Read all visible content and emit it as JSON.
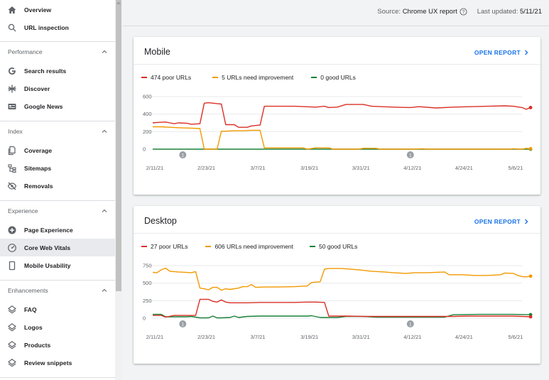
{
  "sidebar": {
    "top_items": [
      {
        "label": "Overview",
        "icon": "home-icon"
      },
      {
        "label": "URL inspection",
        "icon": "search-icon"
      }
    ],
    "sections": [
      {
        "label": "Performance",
        "items": [
          {
            "label": "Search results",
            "icon": "google-g-icon"
          },
          {
            "label": "Discover",
            "icon": "asterisk-icon"
          },
          {
            "label": "Google News",
            "icon": "news-icon"
          }
        ]
      },
      {
        "label": "Index",
        "items": [
          {
            "label": "Coverage",
            "icon": "coverage-icon"
          },
          {
            "label": "Sitemaps",
            "icon": "sitemap-icon"
          },
          {
            "label": "Removals",
            "icon": "removals-icon"
          }
        ]
      },
      {
        "label": "Experience",
        "items": [
          {
            "label": "Page Experience",
            "icon": "page-experience-icon"
          },
          {
            "label": "Core Web Vitals",
            "icon": "gauge-icon",
            "active": true
          },
          {
            "label": "Mobile Usability",
            "icon": "phone-icon"
          }
        ]
      },
      {
        "label": "Enhancements",
        "items": [
          {
            "label": "FAQ",
            "icon": "diamond-layers-icon"
          },
          {
            "label": "Logos",
            "icon": "diamond-layers-icon"
          },
          {
            "label": "Products",
            "icon": "diamond-layers-icon"
          },
          {
            "label": "Review snippets",
            "icon": "diamond-layers-icon"
          }
        ]
      }
    ]
  },
  "header": {
    "source_prefix": "Source:",
    "source_value": "Chrome UX report",
    "updated_prefix": "Last updated:",
    "updated_value": "5/11/21"
  },
  "colors": {
    "poor": "#d93025",
    "needs_improvement": "#f29900",
    "good": "#188038",
    "link": "#1a73e8"
  },
  "cards": [
    {
      "title": "Mobile",
      "open_report": "OPEN REPORT",
      "legend": [
        {
          "label": "474 poor URLs",
          "series": "poor"
        },
        {
          "label": "5 URLs need improvement",
          "series": "needs_improvement"
        },
        {
          "label": "0 good URLs",
          "series": "good"
        }
      ]
    },
    {
      "title": "Desktop",
      "open_report": "OPEN REPORT",
      "legend": [
        {
          "label": "27 poor URLs",
          "series": "poor"
        },
        {
          "label": "606 URLs need improvement",
          "series": "needs_improvement"
        },
        {
          "label": "50 good URLs",
          "series": "good"
        }
      ]
    }
  ],
  "chart_data": [
    {
      "type": "line",
      "title": "Mobile",
      "x_start": "2/11/21",
      "x_end": "5/8/21",
      "x_tick_labels": [
        "2/11/21",
        "2/23/21",
        "3/7/21",
        "3/19/21",
        "3/31/21",
        "4/12/21",
        "4/24/21",
        "5/6/21"
      ],
      "y_ticks": [
        0,
        200,
        400,
        600
      ],
      "ylim": [
        0,
        600
      ],
      "annotation_markers": [
        {
          "x": "2/18/21",
          "label": "1"
        },
        {
          "x": "4/12/21",
          "label": "1"
        }
      ],
      "series": [
        {
          "name": "474 poor URLs",
          "color": "poor",
          "points": [
            [
              "2/11/21",
              300
            ],
            [
              "2/12/21",
              305
            ],
            [
              "2/14/21",
              310
            ],
            [
              "2/15/21",
              300
            ],
            [
              "2/16/21",
              290
            ],
            [
              "2/17/21",
              300
            ],
            [
              "2/19/21",
              295
            ],
            [
              "2/20/21",
              285
            ],
            [
              "2/22/21",
              290
            ],
            [
              "2/23/21",
              525
            ],
            [
              "2/24/21",
              530
            ],
            [
              "2/26/21",
              520
            ],
            [
              "2/27/21",
              515
            ],
            [
              "2/28/21",
              280
            ],
            [
              "3/2/21",
              280
            ],
            [
              "3/3/21",
              250
            ],
            [
              "3/5/21",
              250
            ],
            [
              "3/6/21",
              265
            ],
            [
              "3/8/21",
              275
            ],
            [
              "3/9/21",
              490
            ],
            [
              "3/12/21",
              490
            ],
            [
              "3/16/21",
              490
            ],
            [
              "3/21/21",
              480
            ],
            [
              "3/23/21",
              490
            ],
            [
              "3/24/21",
              475
            ],
            [
              "3/26/21",
              480
            ],
            [
              "3/28/21",
              510
            ],
            [
              "4/1/21",
              510
            ],
            [
              "4/3/21",
              490
            ],
            [
              "4/8/21",
              480
            ],
            [
              "4/12/21",
              475
            ],
            [
              "4/14/21",
              485
            ],
            [
              "4/18/21",
              470
            ],
            [
              "4/22/21",
              480
            ],
            [
              "4/26/21",
              485
            ],
            [
              "4/30/21",
              490
            ],
            [
              "5/4/21",
              495
            ],
            [
              "5/6/21",
              490
            ],
            [
              "5/8/21",
              475
            ],
            [
              "5/9/21",
              455
            ],
            [
              "5/10/21",
              475
            ]
          ]
        },
        {
          "name": "5 URLs need improvement",
          "color": "needs_improvement",
          "points": [
            [
              "2/11/21",
              255
            ],
            [
              "2/13/21",
              255
            ],
            [
              "2/15/21",
              250
            ],
            [
              "2/17/21",
              245
            ],
            [
              "2/20/21",
              240
            ],
            [
              "2/22/21",
              235
            ],
            [
              "2/23/21",
              0
            ],
            [
              "2/26/21",
              0
            ],
            [
              "2/27/21",
              205
            ],
            [
              "2/28/21",
              205
            ],
            [
              "3/2/21",
              210
            ],
            [
              "3/4/21",
              210
            ],
            [
              "3/6/21",
              215
            ],
            [
              "3/8/21",
              215
            ],
            [
              "3/9/21",
              15
            ],
            [
              "3/12/21",
              15
            ],
            [
              "3/18/21",
              15
            ],
            [
              "3/19/21",
              0
            ],
            [
              "3/21/21",
              15
            ],
            [
              "3/24/21",
              15
            ],
            [
              "3/25/21",
              0
            ],
            [
              "3/31/21",
              0
            ],
            [
              "4/1/21",
              10
            ],
            [
              "4/4/21",
              10
            ],
            [
              "4/5/21",
              0
            ],
            [
              "4/12/21",
              0
            ],
            [
              "4/15/21",
              5
            ],
            [
              "4/16/21",
              0
            ],
            [
              "5/5/21",
              0
            ],
            [
              "5/6/21",
              5
            ],
            [
              "5/8/21",
              0
            ],
            [
              "5/9/21",
              10
            ],
            [
              "5/10/21",
              5
            ]
          ]
        },
        {
          "name": "0 good URLs",
          "color": "good",
          "points": [
            [
              "2/11/21",
              0
            ],
            [
              "5/10/21",
              0
            ]
          ]
        }
      ]
    },
    {
      "type": "line",
      "title": "Desktop",
      "x_start": "2/11/21",
      "x_end": "5/8/21",
      "x_tick_labels": [
        "2/11/21",
        "2/23/21",
        "3/7/21",
        "3/19/21",
        "3/31/21",
        "4/12/21",
        "4/24/21",
        "5/6/21"
      ],
      "y_ticks": [
        0,
        250,
        500,
        750
      ],
      "ylim": [
        0,
        750
      ],
      "annotation_markers": [
        {
          "x": "2/18/21",
          "label": "1"
        },
        {
          "x": "4/12/21",
          "label": "1"
        }
      ],
      "series": [
        {
          "name": "27 poor URLs",
          "color": "poor",
          "points": [
            [
              "2/11/21",
              40
            ],
            [
              "2/13/21",
              40
            ],
            [
              "2/14/21",
              15
            ],
            [
              "2/16/21",
              40
            ],
            [
              "2/18/21",
              40
            ],
            [
              "2/21/21",
              40
            ],
            [
              "2/22/21",
              270
            ],
            [
              "2/24/21",
              270
            ],
            [
              "2/25/21",
              240
            ],
            [
              "2/26/21",
              230
            ],
            [
              "2/27/21",
              260
            ],
            [
              "2/28/21",
              230
            ],
            [
              "3/1/21",
              220
            ],
            [
              "3/5/21",
              220
            ],
            [
              "3/8/21",
              225
            ],
            [
              "3/12/21",
              225
            ],
            [
              "3/16/21",
              225
            ],
            [
              "3/19/21",
              230
            ],
            [
              "3/21/21",
              230
            ],
            [
              "3/23/21",
              225
            ],
            [
              "3/24/21",
              30
            ],
            [
              "3/28/21",
              30
            ],
            [
              "4/1/21",
              25
            ],
            [
              "4/5/21",
              25
            ],
            [
              "4/8/21",
              25
            ],
            [
              "4/15/21",
              25
            ],
            [
              "4/20/21",
              25
            ],
            [
              "4/22/21",
              25
            ],
            [
              "4/25/21",
              30
            ],
            [
              "5/1/21",
              30
            ],
            [
              "5/6/21",
              30
            ],
            [
              "5/10/21",
              20
            ]
          ]
        },
        {
          "name": "606 URLs need improvement",
          "color": "needs_improvement",
          "points": [
            [
              "2/11/21",
              655
            ],
            [
              "2/12/21",
              650
            ],
            [
              "2/13/21",
              690
            ],
            [
              "2/14/21",
              715
            ],
            [
              "2/15/21",
              670
            ],
            [
              "2/17/21",
              660
            ],
            [
              "2/20/21",
              650
            ],
            [
              "2/21/21",
              665
            ],
            [
              "2/22/21",
              430
            ],
            [
              "2/23/21",
              420
            ],
            [
              "2/24/21",
              405
            ],
            [
              "2/25/21",
              440
            ],
            [
              "2/26/21",
              440
            ],
            [
              "2/27/21",
              400
            ],
            [
              "2/28/21",
              420
            ],
            [
              "3/1/21",
              410
            ],
            [
              "3/3/21",
              430
            ],
            [
              "3/4/21",
              450
            ],
            [
              "3/5/21",
              450
            ],
            [
              "3/6/21",
              480
            ],
            [
              "3/7/21",
              440
            ],
            [
              "3/9/21",
              445
            ],
            [
              "3/12/21",
              445
            ],
            [
              "3/16/21",
              450
            ],
            [
              "3/19/21",
              460
            ],
            [
              "3/20/21",
              510
            ],
            [
              "3/22/21",
              520
            ],
            [
              "3/23/21",
              700
            ],
            [
              "3/24/21",
              710
            ],
            [
              "3/27/21",
              710
            ],
            [
              "3/31/21",
              690
            ],
            [
              "4/3/21",
              670
            ],
            [
              "4/6/21",
              660
            ],
            [
              "4/8/21",
              650
            ],
            [
              "4/11/21",
              640
            ],
            [
              "4/13/21",
              650
            ],
            [
              "4/16/21",
              650
            ],
            [
              "4/20/21",
              660
            ],
            [
              "4/21/21",
              620
            ],
            [
              "4/24/21",
              620
            ],
            [
              "4/27/21",
              610
            ],
            [
              "4/30/21",
              610
            ],
            [
              "5/3/21",
              620
            ],
            [
              "5/4/21",
              645
            ],
            [
              "5/6/21",
              640
            ],
            [
              "5/7/21",
              610
            ],
            [
              "5/8/21",
              595
            ],
            [
              "5/9/21",
              590
            ],
            [
              "5/10/21",
              600
            ]
          ]
        },
        {
          "name": "50 good URLs",
          "color": "good",
          "points": [
            [
              "2/11/21",
              55
            ],
            [
              "2/13/21",
              55
            ],
            [
              "2/14/21",
              20
            ],
            [
              "2/19/21",
              20
            ],
            [
              "2/20/21",
              25
            ],
            [
              "2/22/21",
              5
            ],
            [
              "2/24/21",
              5
            ],
            [
              "2/25/21",
              30
            ],
            [
              "2/26/21",
              5
            ],
            [
              "2/27/21",
              5
            ],
            [
              "3/1/21",
              10
            ],
            [
              "3/2/21",
              30
            ],
            [
              "3/3/21",
              10
            ],
            [
              "3/5/21",
              25
            ],
            [
              "3/8/21",
              30
            ],
            [
              "3/19/21",
              30
            ],
            [
              "3/20/21",
              35
            ],
            [
              "3/22/21",
              10
            ],
            [
              "3/26/21",
              10
            ],
            [
              "3/28/21",
              25
            ],
            [
              "4/1/21",
              25
            ],
            [
              "4/4/21",
              15
            ],
            [
              "4/12/21",
              15
            ],
            [
              "4/20/21",
              15
            ],
            [
              "4/22/21",
              50
            ],
            [
              "4/28/21",
              55
            ],
            [
              "5/6/21",
              55
            ],
            [
              "5/10/21",
              50
            ]
          ]
        }
      ]
    }
  ]
}
